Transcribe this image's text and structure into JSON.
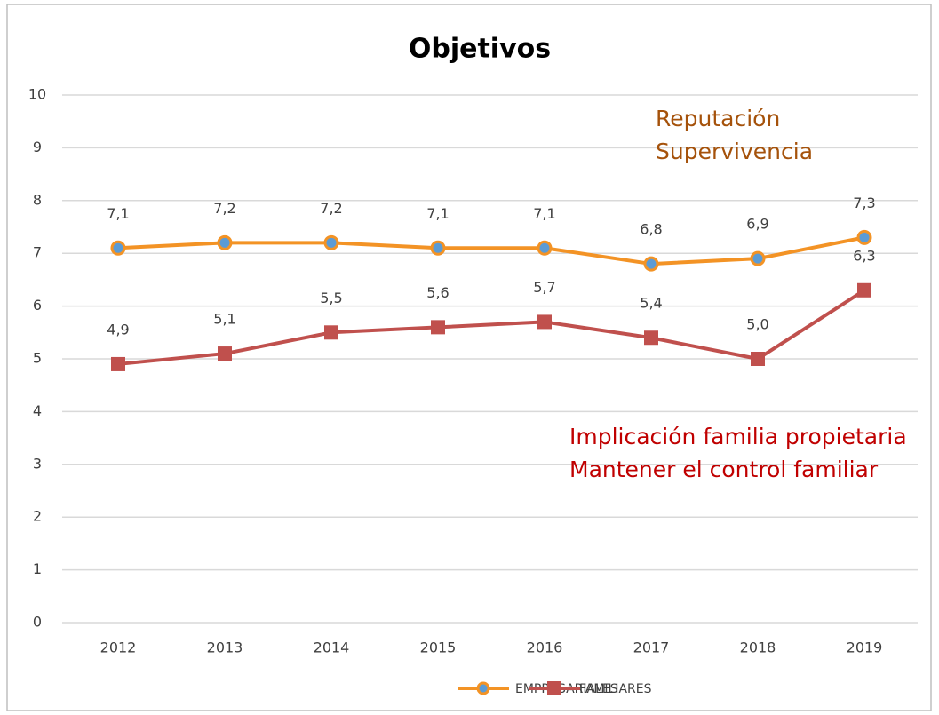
{
  "chart_data": {
    "type": "line",
    "title": "Objetivos",
    "categories": [
      "2012",
      "2013",
      "2014",
      "2015",
      "2016",
      "2017",
      "2018",
      "2019"
    ],
    "series": [
      {
        "name": "EMPRESARIALES",
        "color": "#f39325",
        "marker": "circle",
        "marker_color": "#5b9bd5",
        "values": [
          7.1,
          7.2,
          7.2,
          7.1,
          7.1,
          6.8,
          6.9,
          7.3
        ],
        "value_labels": [
          "7,1",
          "7,2",
          "7,2",
          "7,1",
          "7,1",
          "6,8",
          "6,9",
          "7,3"
        ]
      },
      {
        "name": "FAMILIARES",
        "color": "#c0504d",
        "marker": "square",
        "marker_color": "#c0504d",
        "values": [
          4.9,
          5.1,
          5.5,
          5.6,
          5.7,
          5.4,
          5.0,
          6.3
        ],
        "value_labels": [
          "4,9",
          "5,1",
          "5,5",
          "5,6",
          "5,7",
          "5,4",
          "5,0",
          "6,3"
        ]
      }
    ],
    "ylim": [
      0,
      10
    ],
    "yticks": [
      0,
      1,
      2,
      3,
      4,
      5,
      6,
      7,
      8,
      9,
      10
    ],
    "grid": true,
    "legend": "bottom",
    "annotations": [
      {
        "text": "Reputación",
        "color": "#a5520b"
      },
      {
        "text": "Supervivencia",
        "color": "#a5520b"
      },
      {
        "text": "Implicación familia propietaria",
        "color": "#c00000"
      },
      {
        "text": "Mantener el control familiar",
        "color": "#c00000"
      }
    ]
  }
}
